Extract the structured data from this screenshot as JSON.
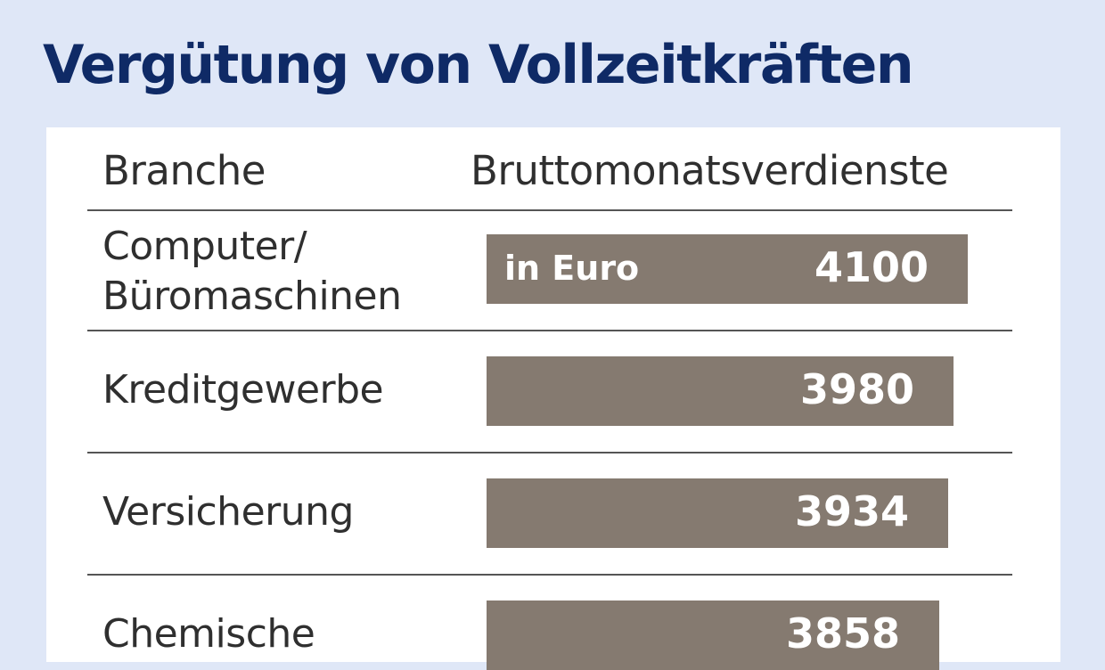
{
  "chart_data": {
    "type": "bar",
    "orientation": "horizontal",
    "title": "Vergütung von Vollzeitkräften",
    "column_headers": [
      "Branche",
      "Bruttomonatsverdienste"
    ],
    "unit_label": "in Euro",
    "categories": [
      "Computer/\nBüromaschinen",
      "Kreditgewerbe",
      "Versicherung",
      "Chemische"
    ],
    "values": [
      4100,
      3980,
      3934,
      3858
    ],
    "value_labels": [
      "4100",
      "3980",
      "3934",
      "3858"
    ],
    "colors": {
      "bar": "#857a70",
      "title": "#0f2a66",
      "background": "#dfe7f7"
    }
  }
}
